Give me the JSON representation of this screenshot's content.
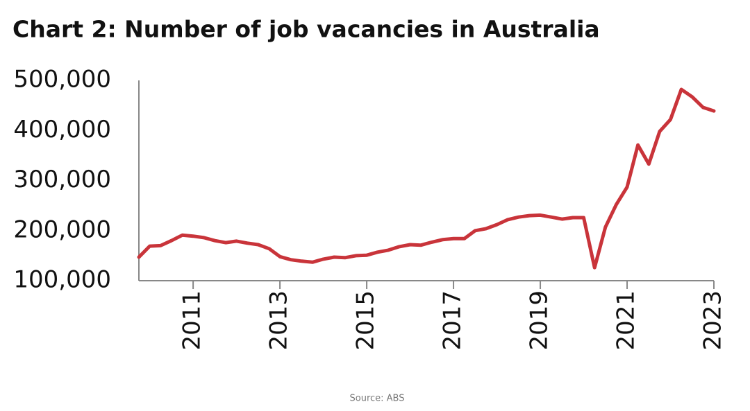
{
  "chart_data": {
    "type": "line",
    "title": "Chart 2: Number of job vacancies in Australia",
    "source": "Source: ABS",
    "color": "#c9343a",
    "x": [
      2009.75,
      2010,
      2010.25,
      2010.5,
      2010.75,
      2011,
      2011.25,
      2011.5,
      2011.75,
      2012,
      2012.25,
      2012.5,
      2012.75,
      2013,
      2013.25,
      2013.5,
      2013.75,
      2014,
      2014.25,
      2014.5,
      2014.75,
      2015,
      2015.25,
      2015.5,
      2015.75,
      2016,
      2016.25,
      2016.5,
      2016.75,
      2017,
      2017.25,
      2017.5,
      2017.75,
      2018,
      2018.25,
      2018.5,
      2018.75,
      2019,
      2019.25,
      2019.5,
      2019.75,
      2020,
      2020.25,
      2020.5,
      2020.75,
      2021,
      2021.25,
      2021.5,
      2021.75,
      2022,
      2022.25,
      2022.5,
      2022.75,
      2023
    ],
    "values": [
      147000,
      169000,
      170000,
      180000,
      191000,
      189000,
      186000,
      180000,
      176000,
      179000,
      175000,
      172000,
      164000,
      148000,
      142000,
      139000,
      137000,
      143000,
      147000,
      146000,
      150000,
      151000,
      157000,
      161000,
      168000,
      172000,
      171000,
      177000,
      182000,
      184000,
      184000,
      200000,
      204000,
      212000,
      222000,
      227000,
      230000,
      231000,
      227000,
      223000,
      226000,
      226000,
      126000,
      207000,
      252000,
      287000,
      371000,
      333000,
      398000,
      422000,
      482000,
      467000,
      446000,
      439000
    ],
    "xlim": [
      2009.75,
      2023
    ],
    "xticks": [
      2011,
      2013,
      2015,
      2017,
      2019,
      2021,
      2023
    ],
    "ylim": [
      100000,
      500000
    ],
    "yticks": [
      {
        "value": 100000,
        "label": "100,000"
      },
      {
        "value": 200000,
        "label": "200,000"
      },
      {
        "value": 300000,
        "label": "300,000"
      },
      {
        "value": 400000,
        "label": "400,000"
      },
      {
        "value": 500000,
        "label": "500,000"
      }
    ],
    "grid": false
  }
}
